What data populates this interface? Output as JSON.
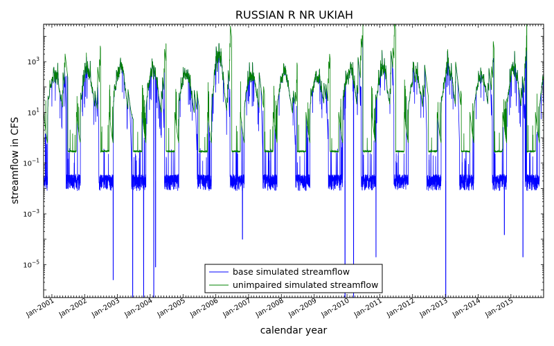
{
  "chart_data": {
    "type": "line",
    "title": "RUSSIAN R NR UKIAH",
    "xlabel": "calendar year",
    "ylabel": "streamflow in CFS",
    "yscale": "log",
    "ylim": [
      5e-07,
      30000
    ],
    "yticks": [
      {
        "value": 1000,
        "base": "10",
        "exp": "3"
      },
      {
        "value": 10,
        "base": "10",
        "exp": "1"
      },
      {
        "value": 0.1,
        "base": "10",
        "exp": "−1"
      },
      {
        "value": 0.001,
        "base": "10",
        "exp": "−3"
      },
      {
        "value": 1e-05,
        "base": "10",
        "exp": "−5"
      }
    ],
    "xlim": [
      "2000-10-01",
      "2015-12-31"
    ],
    "xticks": [
      "Jan-2001",
      "Jan-2002",
      "Jan-2003",
      "Jan-2004",
      "Jan-2005",
      "Jan-2006",
      "Jan-2007",
      "Jan-2008",
      "Jan-2009",
      "Jan-2010",
      "Jan-2011",
      "Jan-2012",
      "Jan-2013",
      "Jan-2014",
      "Jan-2015"
    ],
    "grid": false,
    "legend_position": "lower-center",
    "series": [
      {
        "name": "base simulated streamflow",
        "color": "#0000ff",
        "wet_season_peaks": [
          1100,
          1500,
          2500,
          1800,
          900,
          10000,
          900,
          1400,
          700,
          1400,
          1500,
          1200,
          1900,
          700,
          2000
        ],
        "dry_season_baseflow": 0.02,
        "notable_minima": [
          {
            "date": "2002-11-15",
            "value": 2.5e-06
          },
          {
            "date": "2003-06-20",
            "value": 5e-07
          },
          {
            "date": "2003-10-20",
            "value": 5e-07
          },
          {
            "date": "2004-02-10",
            "value": 5e-07
          },
          {
            "date": "2004-03-01",
            "value": 8e-06
          },
          {
            "date": "2006-10-25",
            "value": 0.0001
          },
          {
            "date": "2009-12-10",
            "value": 5e-07
          },
          {
            "date": "2010-03-15",
            "value": 5e-07
          },
          {
            "date": "2010-11-20",
            "value": 2e-05
          },
          {
            "date": "2013-01-05",
            "value": 5e-07
          },
          {
            "date": "2014-10-20",
            "value": 0.00015
          },
          {
            "date": "2015-05-15",
            "value": 2e-05
          }
        ]
      },
      {
        "name": "unimpaired simulated streamflow",
        "color": "#008000",
        "wet_season_peaks": [
          1100,
          1500,
          2500,
          1800,
          900,
          10000,
          900,
          1400,
          700,
          1400,
          1500,
          1200,
          1900,
          700,
          2000
        ],
        "dry_season_baseflow": 0.3
      }
    ]
  }
}
